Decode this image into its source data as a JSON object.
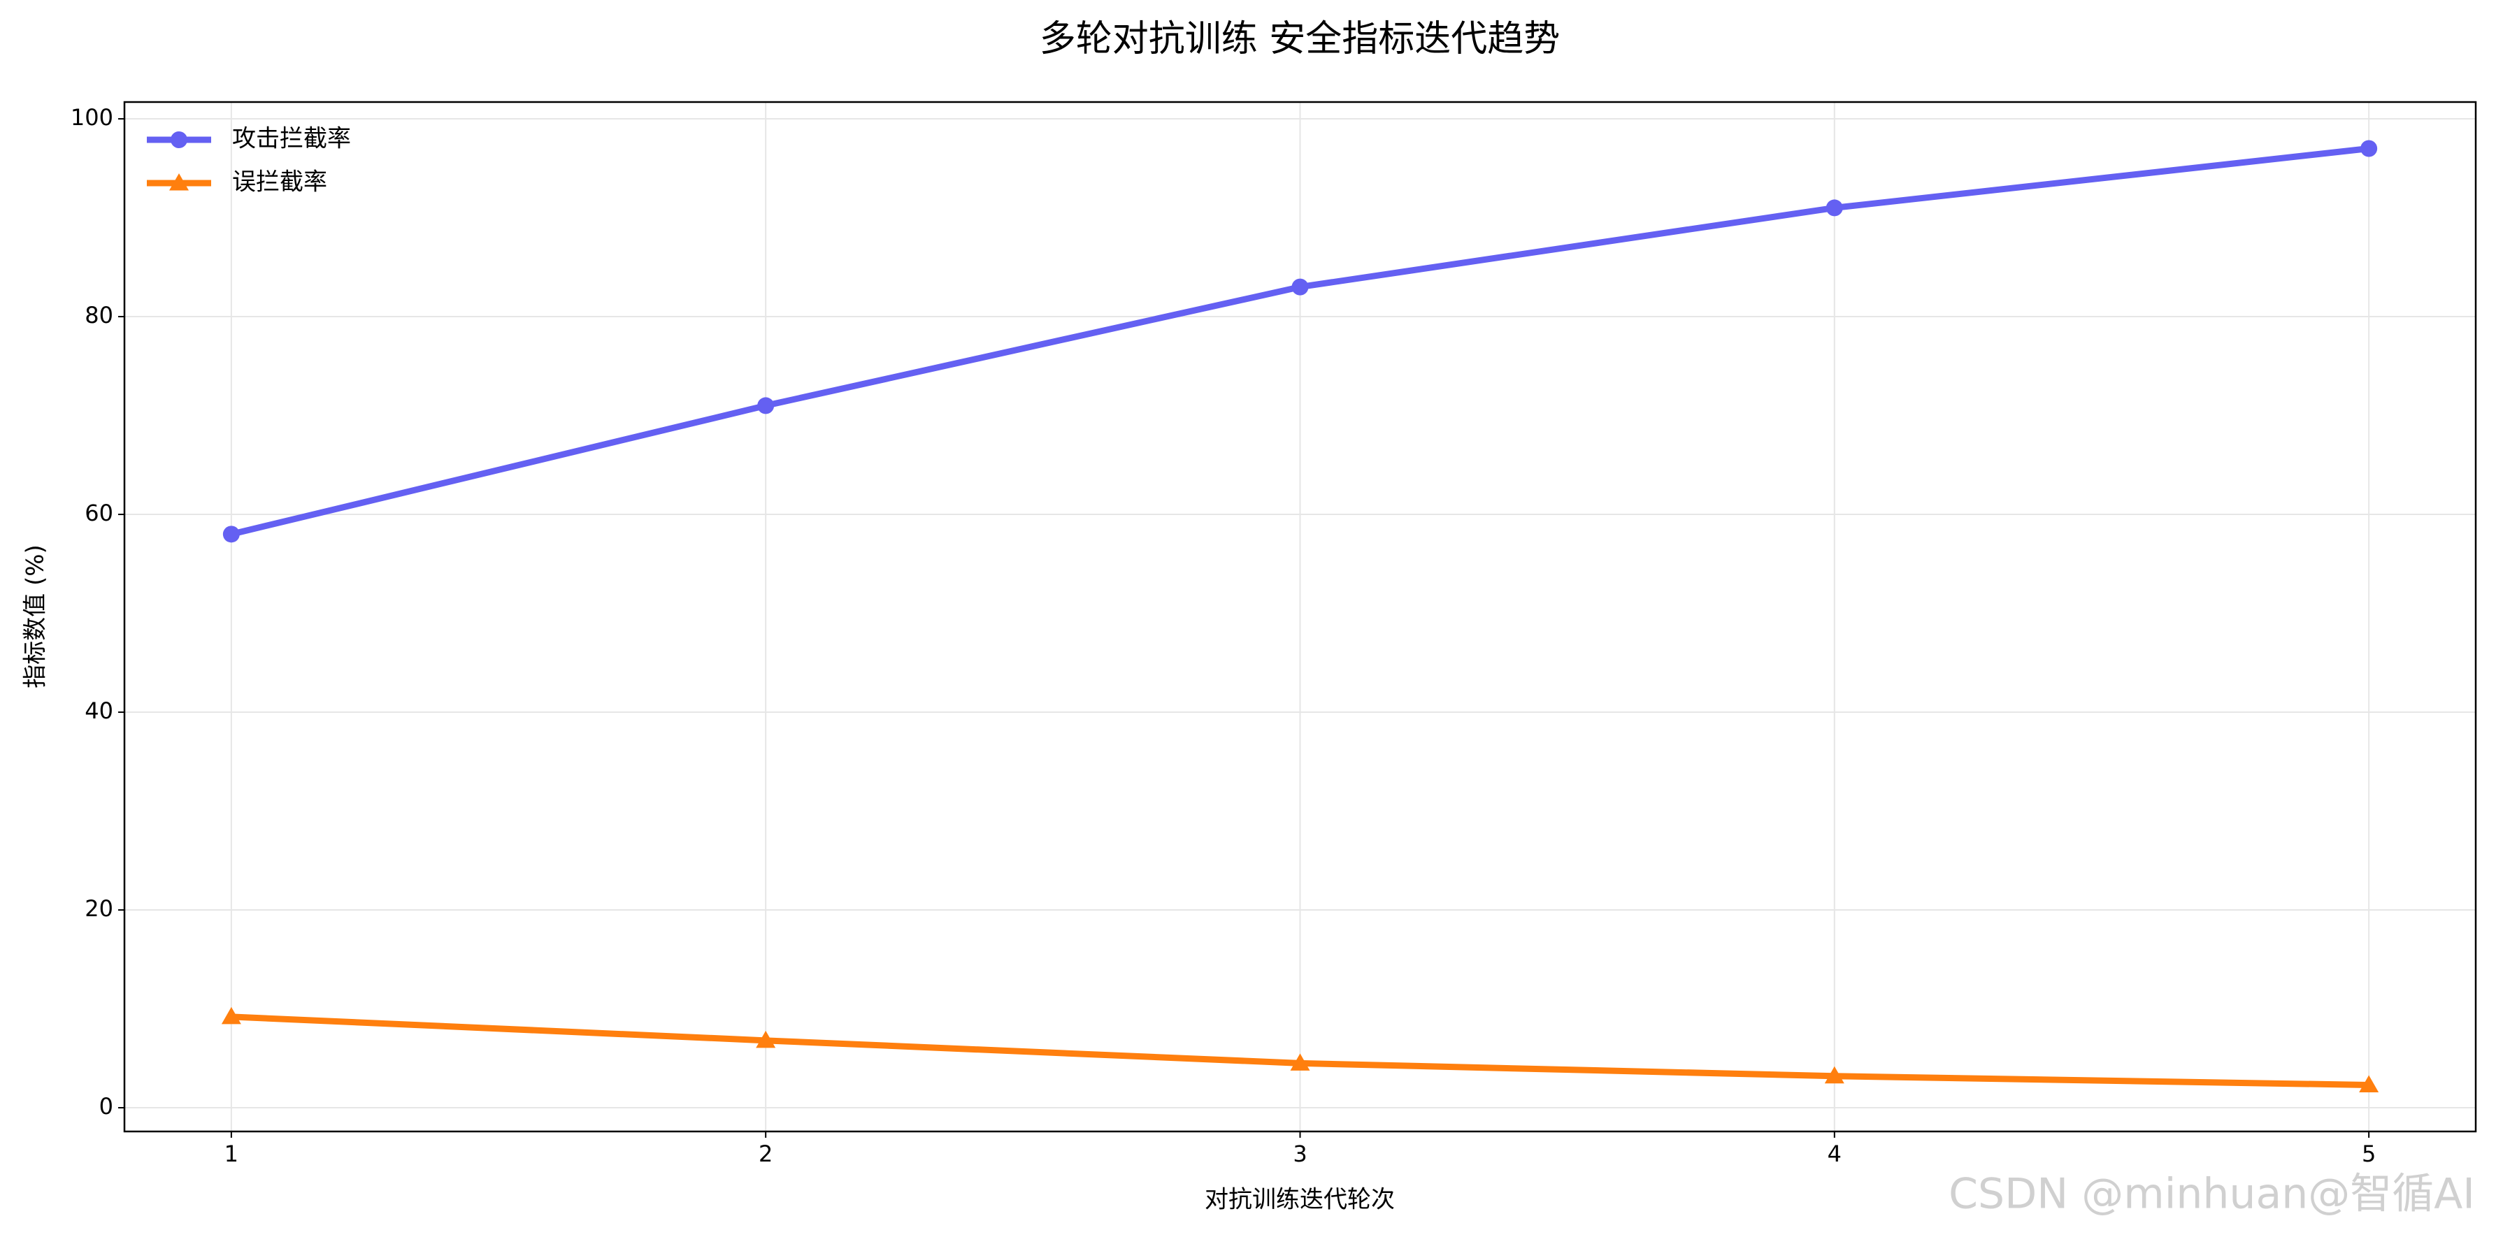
{
  "chart_data": {
    "type": "line",
    "title": "多轮对抗训练 安全指标迭代趋势",
    "x_label": "对抗训练迭代轮次",
    "y_label": "指标数值 (%)",
    "x": [
      1,
      2,
      3,
      4,
      5
    ],
    "series": [
      {
        "name": "攻击拦截率",
        "color": "#6460f2",
        "marker": "circle",
        "values": [
          58,
          71,
          83,
          91,
          97
        ]
      },
      {
        "name": "误拦截率",
        "color": "#ff7f0e",
        "marker": "triangle",
        "values": [
          9.2,
          6.8,
          4.5,
          3.2,
          2.3
        ]
      }
    ],
    "xlim": [
      0.8,
      5.2
    ],
    "xticks": [
      1,
      2,
      3,
      4,
      5
    ],
    "ylim": [
      -2.4,
      101.7
    ],
    "yticks": [
      0,
      20,
      40,
      60,
      80,
      100
    ],
    "grid": true,
    "legend": "upper left",
    "watermark": "CSDN @minhuan@智循AI"
  }
}
